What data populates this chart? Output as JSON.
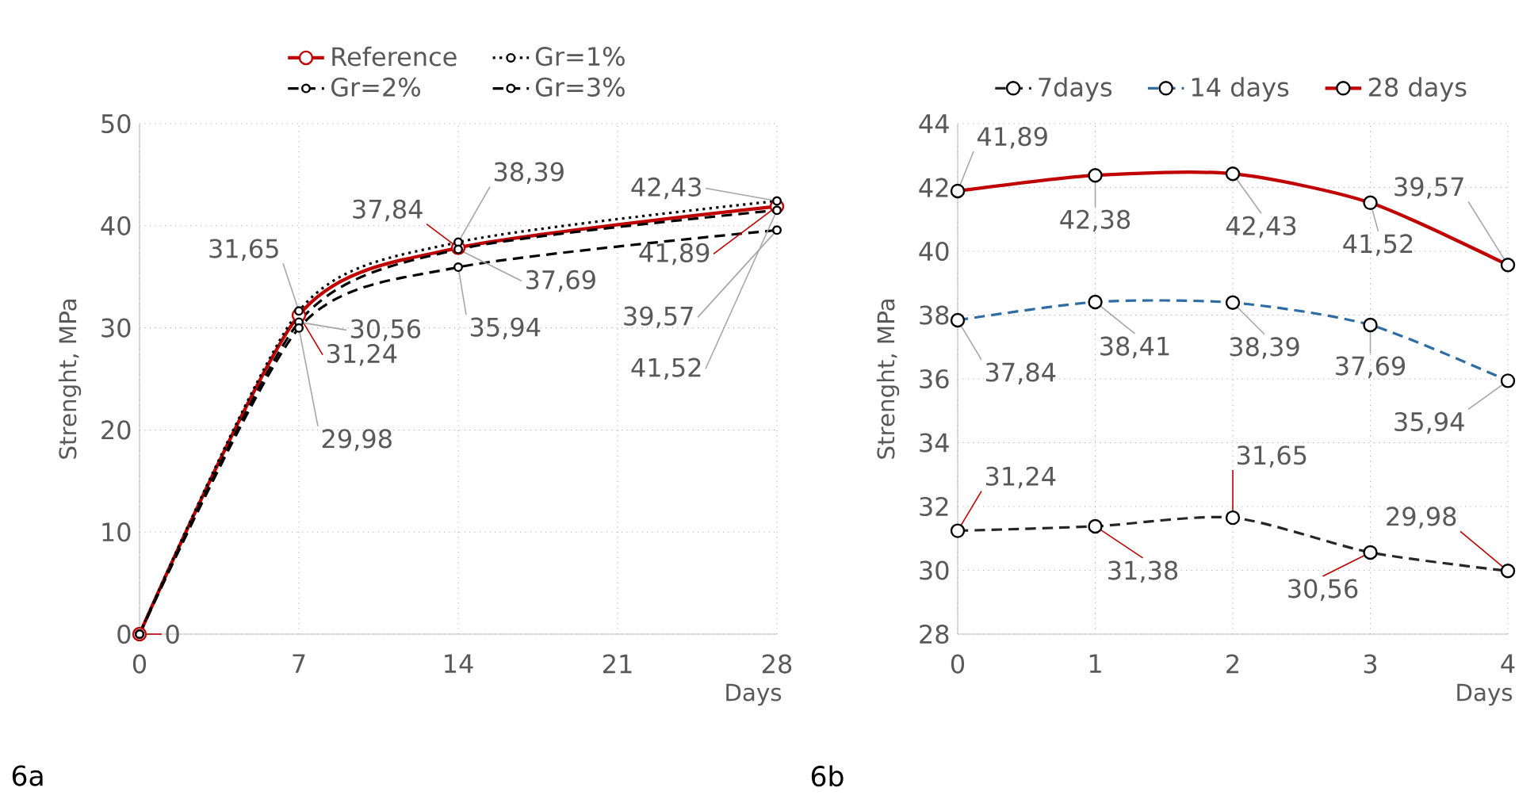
{
  "chart_data": [
    {
      "type": "line",
      "xlabel": "Days",
      "ylabel": "Strenght, MPa",
      "x": [
        0,
        7,
        14,
        28
      ],
      "xlim": [
        0,
        28
      ],
      "xticks": [
        0,
        7,
        14,
        21,
        28
      ],
      "ylim": [
        0,
        50
      ],
      "yticks": [
        0,
        10,
        20,
        30,
        40,
        50
      ],
      "grid": true,
      "legend": "top",
      "annotations": [
        "6a"
      ],
      "series": [
        {
          "name": "Reference",
          "color": "#c00000",
          "line_style": "solid",
          "marker": "circle",
          "values": [
            0,
            31.24,
            37.84,
            41.89
          ],
          "value_labels": [
            "0",
            "31,24",
            "37,84",
            "41,89"
          ]
        },
        {
          "name": "Gr=1%",
          "color": "#000000",
          "line_style": "dotted",
          "marker": "circle",
          "values": [
            0,
            31.65,
            38.39,
            42.43
          ],
          "value_labels": [
            null,
            "31,65",
            "38,39",
            "42,43"
          ]
        },
        {
          "name": "Gr=2%",
          "color": "#000000",
          "line_style": "dashed",
          "marker": "circle",
          "values": [
            0,
            30.56,
            37.69,
            41.52
          ],
          "value_labels": [
            null,
            "30,56",
            "37,69",
            "41,52"
          ]
        },
        {
          "name": "Gr=3%",
          "color": "#000000",
          "line_style": "dashed",
          "marker": "circle",
          "values": [
            0,
            29.98,
            35.94,
            39.57
          ],
          "value_labels": [
            null,
            "29,98",
            "35,94",
            "39,57"
          ]
        }
      ]
    },
    {
      "type": "line",
      "xlabel": "Days",
      "ylabel": "Strenght, MPa",
      "x": [
        0,
        1,
        2,
        3,
        4
      ],
      "xlim": [
        0,
        4
      ],
      "xticks": [
        0,
        1,
        2,
        3,
        4
      ],
      "ylim": [
        28,
        44
      ],
      "yticks": [
        28,
        30,
        32,
        34,
        36,
        38,
        40,
        42,
        44
      ],
      "grid": true,
      "legend": "top",
      "annotations": [
        "6b"
      ],
      "series": [
        {
          "name": "7days",
          "color": "#262626",
          "line_style": "dashed",
          "marker": "circle",
          "values": [
            31.24,
            31.38,
            31.65,
            30.56,
            29.98
          ],
          "value_labels": [
            "31,24",
            "31,38",
            "31,65",
            "30,56",
            "29,98"
          ]
        },
        {
          "name": "14 days",
          "color": "#2e6ca4",
          "line_style": "dashed",
          "marker": "circle",
          "values": [
            37.84,
            38.41,
            38.39,
            37.69,
            35.94
          ],
          "value_labels": [
            "37,84",
            "38,41",
            "38,39",
            "37,69",
            "35,94"
          ]
        },
        {
          "name": "28 days",
          "color": "#c00000",
          "line_style": "solid",
          "marker": "circle",
          "values": [
            41.89,
            42.38,
            42.43,
            41.52,
            39.57
          ],
          "value_labels": [
            "41,89",
            "42,38",
            "42,43",
            "41,52",
            "39,57"
          ]
        }
      ]
    }
  ]
}
